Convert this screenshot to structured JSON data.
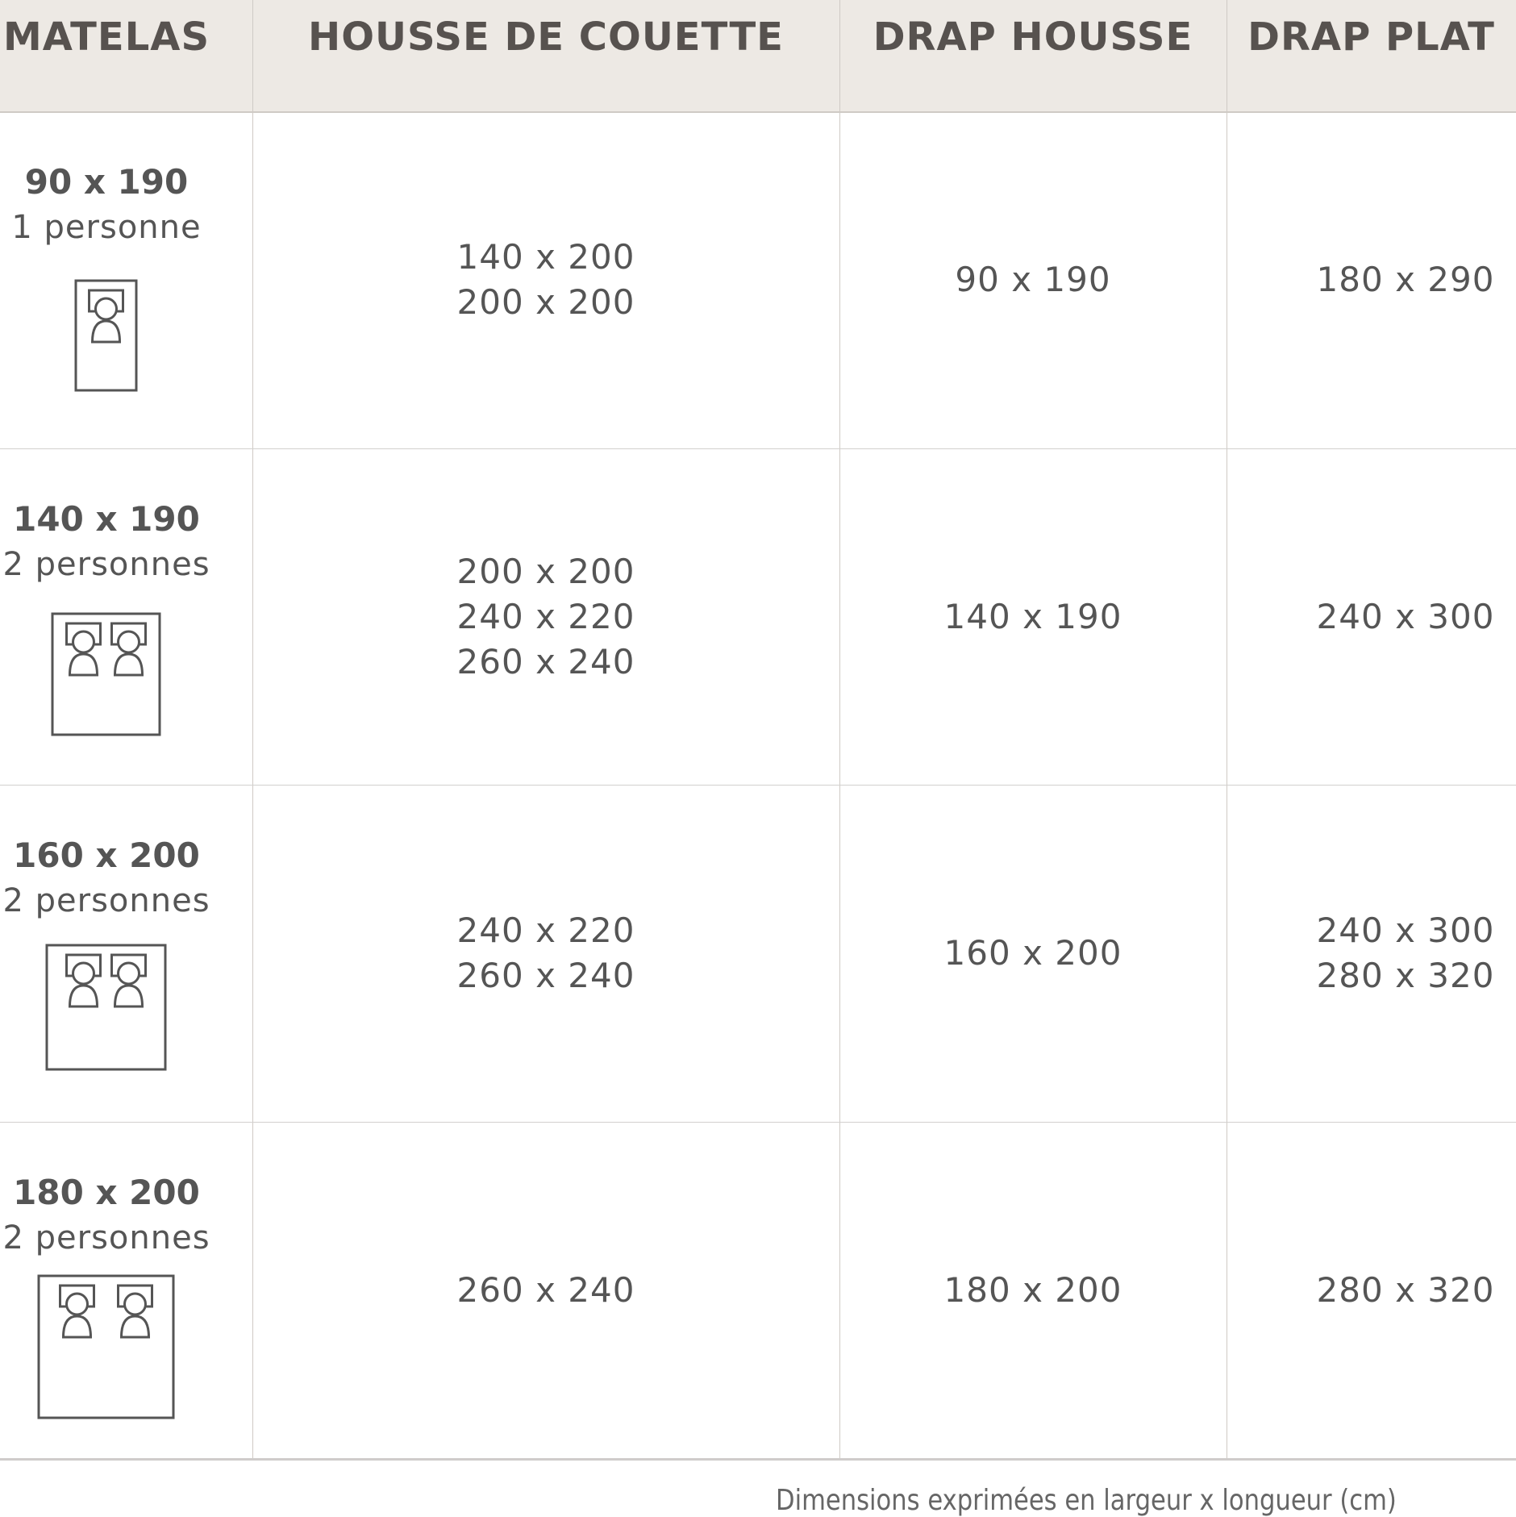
{
  "headers": [
    "MATELAS",
    "HOUSSE DE COUETTE",
    "DRAP HOUSSE",
    "DRAP PLAT"
  ],
  "rows": [
    {
      "matelas_size": "90 x 190",
      "persons": "1 personne",
      "bed_icon": "single-bed-icon",
      "housse": [
        "140 x 200",
        "200 x 200"
      ],
      "drap_housse": [
        "90 x 190"
      ],
      "drap_plat": [
        "180 x 290"
      ]
    },
    {
      "matelas_size": "140 x 190",
      "persons": "2 personnes",
      "bed_icon": "double-bed-icon",
      "housse": [
        "200 x 200",
        "240 x 220",
        "260 x 240"
      ],
      "drap_housse": [
        "140 x 190"
      ],
      "drap_plat": [
        "240 x 300"
      ]
    },
    {
      "matelas_size": "160 x 200",
      "persons": "2 personnes",
      "bed_icon": "double-bed-icon",
      "housse": [
        "240 x 220",
        "260 x 240"
      ],
      "drap_housse": [
        "160 x 200"
      ],
      "drap_plat": [
        "240 x 300",
        "280 x 320"
      ]
    },
    {
      "matelas_size": "180 x 200",
      "persons": "2 personnes",
      "bed_icon": "double-bed-icon",
      "housse": [
        "260 x 240"
      ],
      "drap_housse": [
        "180 x 200"
      ],
      "drap_plat": [
        "280 x 320"
      ]
    }
  ],
  "footnote": "Dimensions exprimées en largeur x longueur (cm)",
  "colors": {
    "header_bg": "#ede9e4",
    "text": "#555555",
    "lines": "#cfcac5"
  }
}
